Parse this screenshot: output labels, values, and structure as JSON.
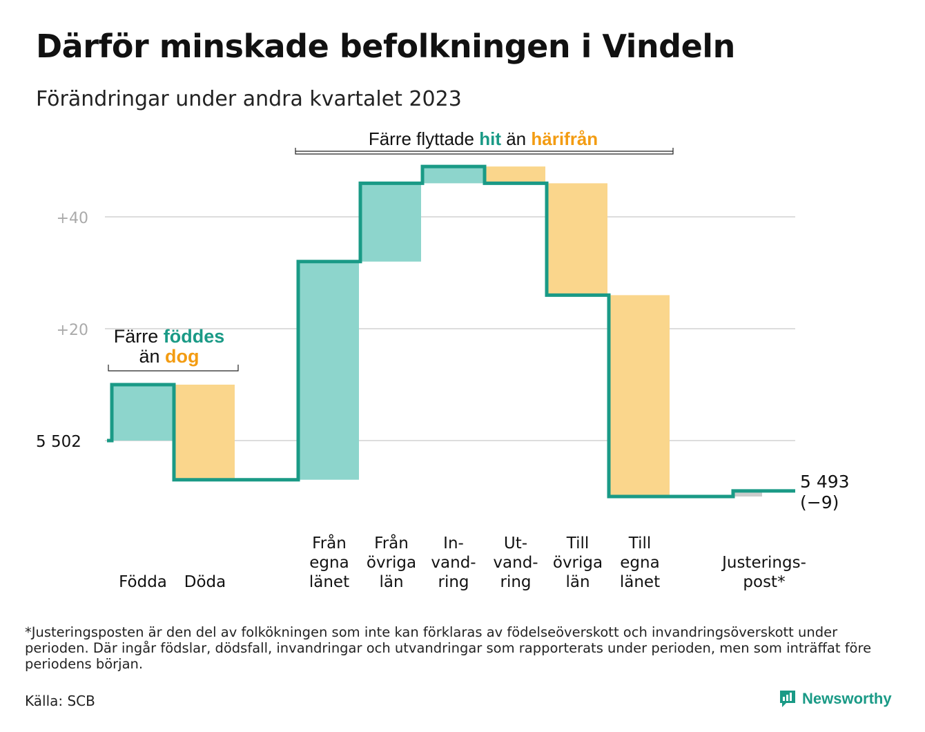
{
  "title": "Därför minskade befolkningen i Vindeln",
  "subtitle": "Förändringar under andra kvartalet 2023",
  "colors": {
    "increase": "#8dd5cc",
    "decrease": "#fad68c",
    "adjustment": "#cccccc",
    "line": "#1a9a86",
    "accent_green": "#1a9a86",
    "accent_orange": "#f39c12",
    "grid": "#dddddd",
    "tick_label": "#aaaaaa"
  },
  "chart_data": {
    "type": "waterfall",
    "start_value": 5502,
    "end_value": 5493,
    "y_axis": {
      "ticks": [
        {
          "value": 0,
          "label": "5  502"
        },
        {
          "value": 20,
          "label": "+20"
        },
        {
          "value": 40,
          "label": "+40"
        }
      ],
      "range": [
        -10,
        50
      ]
    },
    "categories": [
      {
        "label": [
          "Födda"
        ],
        "change": 10
      },
      {
        "label": [
          "Döda"
        ],
        "change": -17
      },
      {
        "label": [],
        "change": 0
      },
      {
        "label": [
          "Från",
          "egna",
          "länet"
        ],
        "change": 39
      },
      {
        "label": [
          "Från",
          "övriga",
          "län"
        ],
        "change": 14
      },
      {
        "label": [
          "In-",
          "vand-",
          "ring"
        ],
        "change": 3
      },
      {
        "label": [
          "Ut-",
          "vand-",
          "ring"
        ],
        "change": -3
      },
      {
        "label": [
          "Till",
          "övriga",
          "län"
        ],
        "change": -20
      },
      {
        "label": [
          "Till",
          "egna",
          "länet"
        ],
        "change": -36
      },
      {
        "label": [],
        "change": 0
      },
      {
        "label": [
          "Justerings-",
          "post*"
        ],
        "change": 1,
        "adjustment": true
      }
    ],
    "end_label": [
      "5 493",
      "(−9)"
    ],
    "annotations": {
      "births": {
        "parts": [
          "Färre ",
          "föddes",
          "än ",
          "dog"
        ]
      },
      "migration": {
        "parts": [
          "Färre flyttade ",
          "hit",
          " än ",
          "härifrån"
        ]
      }
    }
  },
  "footnote": "*Justeringsposten är den del av folkökningen som inte kan förklaras av födelseöverskott och invandringsöverskott under perioden. Där ingår födslar, dödsfall, invandringar och utvandringar som rapporterats under perioden, men som inträffat före periodens början.",
  "source": "Källa: SCB",
  "brand": {
    "name": "Newsworthy",
    "icon": "newsworthy-logo-icon"
  }
}
